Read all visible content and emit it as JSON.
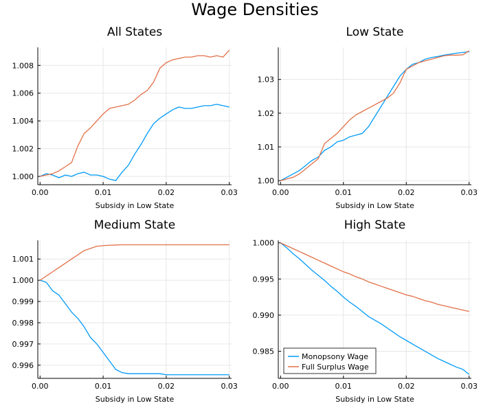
{
  "figure": {
    "title": "Wage Densities"
  },
  "colors": {
    "monopsony": "#009AF9",
    "full_surplus": "#E26F46",
    "grid": "#e6e6e6",
    "axis": "#000000"
  },
  "legend": {
    "entries": [
      "Monopsony Wage",
      "Full Surplus Wage"
    ],
    "placement": "bottom-left (High State)"
  },
  "chart_data": [
    {
      "type": "line",
      "title": "All States",
      "xlabel": "Subsidy in Low State",
      "ylabel": "",
      "xlim": [
        0,
        0.03
      ],
      "ylim": [
        0.9994,
        1.0093
      ],
      "xticks": [
        0,
        0.01,
        0.02,
        0.03
      ],
      "xtick_labels": [
        "0.00",
        "0.01",
        "0.02",
        "0.03"
      ],
      "yticks": [
        1.0,
        1.002,
        1.004,
        1.006,
        1.008
      ],
      "ytick_labels": [
        "1.000",
        "1.002",
        "1.004",
        "1.006",
        "1.008"
      ],
      "grid": true,
      "series": [
        {
          "name": "Monopsony Wage",
          "x": [
            0,
            0.001,
            0.002,
            0.003,
            0.004,
            0.005,
            0.006,
            0.007,
            0.008,
            0.009,
            0.01,
            0.011,
            0.012,
            0.013,
            0.014,
            0.015,
            0.016,
            0.017,
            0.018,
            0.019,
            0.02,
            0.021,
            0.022,
            0.023,
            0.024,
            0.025,
            0.026,
            0.027,
            0.028,
            0.029,
            0.03
          ],
          "y": [
            1.0,
            1.0002,
            1.0001,
            0.9999,
            1.0001,
            1.0,
            1.0002,
            1.0003,
            1.0001,
            1.0001,
            1.0,
            0.9998,
            0.9997,
            1.0003,
            1.0008,
            1.0016,
            1.0023,
            1.0031,
            1.0038,
            1.0042,
            1.0045,
            1.0048,
            1.005,
            1.0049,
            1.0049,
            1.005,
            1.0051,
            1.0051,
            1.0052,
            1.0051,
            1.005
          ]
        },
        {
          "name": "Full Surplus Wage",
          "x": [
            0,
            0.001,
            0.002,
            0.003,
            0.004,
            0.005,
            0.006,
            0.007,
            0.008,
            0.009,
            0.01,
            0.011,
            0.012,
            0.013,
            0.014,
            0.015,
            0.016,
            0.017,
            0.018,
            0.019,
            0.02,
            0.021,
            0.022,
            0.023,
            0.024,
            0.025,
            0.026,
            0.027,
            0.028,
            0.029,
            0.03
          ],
          "y": [
            1.0,
            1.0001,
            1.0002,
            1.0004,
            1.0007,
            1.001,
            1.0022,
            1.0031,
            1.0035,
            1.004,
            1.0045,
            1.0049,
            1.005,
            1.0051,
            1.0052,
            1.0055,
            1.0059,
            1.0062,
            1.0068,
            1.0078,
            1.0082,
            1.0084,
            1.0085,
            1.0086,
            1.0086,
            1.0087,
            1.0087,
            1.0086,
            1.0087,
            1.0086,
            1.0091
          ]
        }
      ]
    },
    {
      "type": "line",
      "title": "Low State",
      "xlabel": "Subsidy in Low State",
      "ylabel": "",
      "xlim": [
        0,
        0.03
      ],
      "ylim": [
        0.9988,
        1.0395
      ],
      "xticks": [
        0,
        0.01,
        0.02,
        0.03
      ],
      "xtick_labels": [
        "0.00",
        "0.01",
        "0.02",
        "0.03"
      ],
      "yticks": [
        1.0,
        1.01,
        1.02,
        1.03
      ],
      "ytick_labels": [
        "1.00",
        "1.01",
        "1.02",
        "1.03"
      ],
      "grid": true,
      "series": [
        {
          "name": "Monopsony Wage",
          "x": [
            0,
            0.001,
            0.002,
            0.003,
            0.004,
            0.005,
            0.006,
            0.007,
            0.008,
            0.009,
            0.01,
            0.011,
            0.012,
            0.013,
            0.014,
            0.015,
            0.016,
            0.017,
            0.018,
            0.019,
            0.02,
            0.021,
            0.022,
            0.023,
            0.024,
            0.025,
            0.026,
            0.027,
            0.028,
            0.029,
            0.03
          ],
          "y": [
            1.0,
            1.001,
            1.002,
            1.003,
            1.0045,
            1.006,
            1.007,
            1.009,
            1.01,
            1.0115,
            1.012,
            1.013,
            1.0135,
            1.014,
            1.016,
            1.019,
            1.022,
            1.025,
            1.028,
            1.031,
            1.033,
            1.0345,
            1.035,
            1.036,
            1.0365,
            1.0368,
            1.0372,
            1.0375,
            1.0378,
            1.038,
            1.0382
          ]
        },
        {
          "name": "Full Surplus Wage",
          "x": [
            0,
            0.001,
            0.002,
            0.003,
            0.004,
            0.005,
            0.006,
            0.007,
            0.008,
            0.009,
            0.01,
            0.011,
            0.012,
            0.013,
            0.014,
            0.015,
            0.016,
            0.017,
            0.018,
            0.019,
            0.02,
            0.021,
            0.022,
            0.023,
            0.024,
            0.025,
            0.026,
            0.027,
            0.028,
            0.029,
            0.03
          ],
          "y": [
            1.0,
            1.0005,
            1.001,
            1.002,
            1.0035,
            1.005,
            1.0065,
            1.011,
            1.0125,
            1.014,
            1.016,
            1.018,
            1.0195,
            1.0205,
            1.0215,
            1.0225,
            1.0235,
            1.0245,
            1.026,
            1.029,
            1.033,
            1.034,
            1.035,
            1.0355,
            1.036,
            1.0365,
            1.037,
            1.0372,
            1.0372,
            1.0373,
            1.0385
          ]
        }
      ]
    },
    {
      "type": "line",
      "title": "Medium State",
      "xlabel": "Subsidy in Low State",
      "ylabel": "",
      "xlim": [
        0,
        0.03
      ],
      "ylim": [
        0.99538,
        1.00188
      ],
      "xticks": [
        0,
        0.01,
        0.02,
        0.03
      ],
      "xtick_labels": [
        "0.00",
        "0.01",
        "0.02",
        "0.03"
      ],
      "yticks": [
        0.996,
        0.997,
        0.998,
        0.999,
        1.0,
        1.001
      ],
      "ytick_labels": [
        "0.996",
        "0.997",
        "0.998",
        "0.999",
        "1.000",
        "1.001"
      ],
      "grid": true,
      "series": [
        {
          "name": "Monopsony Wage",
          "x": [
            0,
            0.001,
            0.002,
            0.003,
            0.004,
            0.005,
            0.006,
            0.007,
            0.008,
            0.009,
            0.01,
            0.011,
            0.012,
            0.013,
            0.014,
            0.015,
            0.016,
            0.017,
            0.018,
            0.019,
            0.02,
            0.021,
            0.022,
            0.023,
            0.024,
            0.025,
            0.026,
            0.027,
            0.028,
            0.029,
            0.03
          ],
          "y": [
            1.0,
            0.9999,
            0.9995,
            0.9993,
            0.9989,
            0.9985,
            0.9982,
            0.9978,
            0.9973,
            0.997,
            0.9966,
            0.9962,
            0.9958,
            0.99565,
            0.9956,
            0.9956,
            0.9956,
            0.9956,
            0.9956,
            0.9956,
            0.99555,
            0.99555,
            0.99555,
            0.99555,
            0.99555,
            0.99555,
            0.99555,
            0.99555,
            0.99555,
            0.99555,
            0.99555
          ]
        },
        {
          "name": "Full Surplus Wage",
          "x": [
            0,
            0.001,
            0.002,
            0.003,
            0.004,
            0.005,
            0.006,
            0.007,
            0.008,
            0.009,
            0.01,
            0.011,
            0.012,
            0.013,
            0.014,
            0.015,
            0.016,
            0.017,
            0.018,
            0.019,
            0.02,
            0.021,
            0.022,
            0.023,
            0.024,
            0.025,
            0.026,
            0.027,
            0.028,
            0.029,
            0.03
          ],
          "y": [
            1.0,
            1.0002,
            1.0004,
            1.0006,
            1.0008,
            1.001,
            1.0012,
            1.0014,
            1.0015,
            1.0016,
            1.00163,
            1.00165,
            1.00166,
            1.00167,
            1.00167,
            1.00167,
            1.00167,
            1.00167,
            1.00167,
            1.00167,
            1.00167,
            1.00167,
            1.00167,
            1.00167,
            1.00167,
            1.00167,
            1.00167,
            1.00167,
            1.00167,
            1.00167,
            1.00167
          ]
        }
      ]
    },
    {
      "type": "line",
      "title": "High State",
      "xlabel": "Subsidy in Low State",
      "ylabel": "",
      "xlim": [
        0,
        0.03
      ],
      "ylim": [
        0.98125,
        1.00035
      ],
      "xticks": [
        0,
        0.01,
        0.02,
        0.03
      ],
      "xtick_labels": [
        "0.00",
        "0.01",
        "0.02",
        "0.03"
      ],
      "yticks": [
        0.985,
        0.99,
        0.995,
        1.0
      ],
      "ytick_labels": [
        "0.985",
        "0.990",
        "0.995",
        "1.000"
      ],
      "grid": true,
      "series": [
        {
          "name": "Monopsony Wage",
          "x": [
            0,
            0.001,
            0.002,
            0.003,
            0.004,
            0.005,
            0.006,
            0.007,
            0.008,
            0.009,
            0.01,
            0.011,
            0.012,
            0.013,
            0.014,
            0.015,
            0.016,
            0.017,
            0.018,
            0.019,
            0.02,
            0.021,
            0.022,
            0.023,
            0.024,
            0.025,
            0.026,
            0.027,
            0.028,
            0.029,
            0.03
          ],
          "y": [
            1.0,
            0.9993,
            0.9985,
            0.9978,
            0.997,
            0.9962,
            0.9955,
            0.9948,
            0.994,
            0.9933,
            0.9925,
            0.9918,
            0.9912,
            0.9905,
            0.9898,
            0.9893,
            0.9888,
            0.9882,
            0.9876,
            0.987,
            0.9865,
            0.986,
            0.9855,
            0.985,
            0.9845,
            0.984,
            0.9836,
            0.9832,
            0.9828,
            0.9825,
            0.9818
          ]
        },
        {
          "name": "Full Surplus Wage",
          "x": [
            0,
            0.001,
            0.002,
            0.003,
            0.004,
            0.005,
            0.006,
            0.007,
            0.008,
            0.009,
            0.01,
            0.011,
            0.012,
            0.013,
            0.014,
            0.015,
            0.016,
            0.017,
            0.018,
            0.019,
            0.02,
            0.021,
            0.022,
            0.023,
            0.024,
            0.025,
            0.026,
            0.027,
            0.028,
            0.029,
            0.03
          ],
          "y": [
            1.0,
            0.9996,
            0.9992,
            0.9988,
            0.9984,
            0.998,
            0.9976,
            0.9972,
            0.9968,
            0.9964,
            0.996,
            0.9957,
            0.9953,
            0.995,
            0.9946,
            0.9943,
            0.994,
            0.9937,
            0.9934,
            0.9931,
            0.9928,
            0.9926,
            0.9923,
            0.992,
            0.9918,
            0.9915,
            0.9913,
            0.9911,
            0.9909,
            0.9907,
            0.9905
          ]
        }
      ]
    }
  ]
}
